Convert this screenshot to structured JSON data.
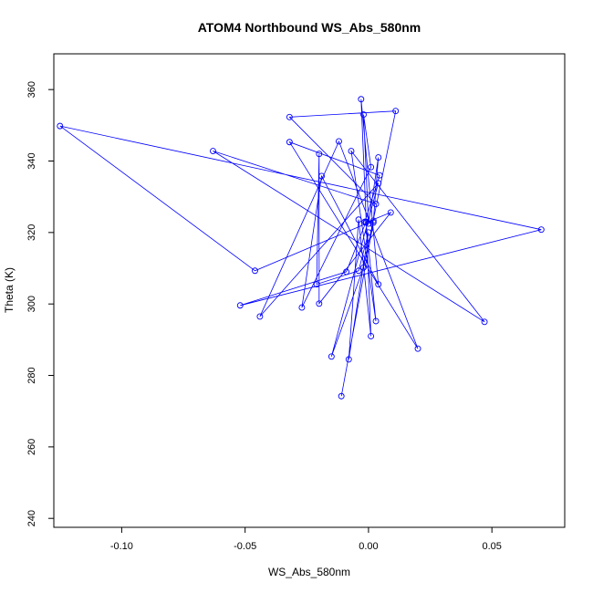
{
  "chart_data": {
    "type": "line",
    "title": "ATOM4 Northbound WS_Abs_580nm",
    "xlabel": "WS_Abs_580nm",
    "ylabel": "Theta (K)",
    "xlim": [
      -0.1275,
      0.0795
    ],
    "ylim": [
      237.5,
      370
    ],
    "xticks": [
      -0.1,
      -0.05,
      0.0,
      0.05
    ],
    "xtick_labels": [
      "-0.10",
      "-0.05",
      "0.00",
      "0.05"
    ],
    "yticks": [
      240,
      260,
      280,
      300,
      320,
      340,
      360
    ],
    "ytick_labels": [
      "240",
      "260",
      "280",
      "300",
      "320",
      "340",
      "360"
    ],
    "grid": false,
    "series": [
      {
        "color": "#0000ff",
        "marker": "open-circle",
        "points": [
          {
            "x": -0.011,
            "y": 274.2
          },
          {
            "x": 0.002,
            "y": 322.8
          },
          {
            "x": -0.0015,
            "y": 323.0
          },
          {
            "x": 0.0045,
            "y": 336.0
          },
          {
            "x": -0.032,
            "y": 345.3
          },
          {
            "x": 0.02,
            "y": 287.5
          },
          {
            "x": -0.012,
            "y": 345.5
          },
          {
            "x": -0.044,
            "y": 296.5
          },
          {
            "x": 0.004,
            "y": 333.8
          },
          {
            "x": -0.015,
            "y": 285.3
          },
          {
            "x": -0.002,
            "y": 310.2
          },
          {
            "x": 0.011,
            "y": 354.0
          },
          {
            "x": -0.032,
            "y": 352.3
          },
          {
            "x": 0.003,
            "y": 328.0
          },
          {
            "x": -0.063,
            "y": 342.8
          },
          {
            "x": 0.047,
            "y": 295.0
          },
          {
            "x": -0.007,
            "y": 342.8
          },
          {
            "x": 0.003,
            "y": 295.2
          },
          {
            "x": -0.001,
            "y": 323.0
          },
          {
            "x": -0.009,
            "y": 309.0
          },
          {
            "x": -0.052,
            "y": 299.6
          },
          {
            "x": 0.07,
            "y": 320.8
          },
          {
            "x": -0.125,
            "y": 349.8
          },
          {
            "x": -0.046,
            "y": 309.3
          },
          {
            "x": 0.002,
            "y": 323.3
          },
          {
            "x": 0.004,
            "y": 341.0
          },
          {
            "x": 0.0,
            "y": 322.5
          },
          {
            "x": -0.002,
            "y": 353.0
          },
          {
            "x": 0.001,
            "y": 338.3
          },
          {
            "x": -0.027,
            "y": 299.0
          },
          {
            "x": -0.019,
            "y": 335.8
          },
          {
            "x": 0.004,
            "y": 305.5
          },
          {
            "x": -0.003,
            "y": 357.3
          },
          {
            "x": 0.001,
            "y": 291.0
          },
          {
            "x": -0.004,
            "y": 323.6
          },
          {
            "x": -0.008,
            "y": 284.5
          },
          {
            "x": 0.0,
            "y": 320.0
          },
          {
            "x": -0.004,
            "y": 309.3
          },
          {
            "x": -0.021,
            "y": 305.5
          },
          {
            "x": -0.02,
            "y": 342.0
          },
          {
            "x": -0.02,
            "y": 300.1
          },
          {
            "x": 0.009,
            "y": 325.6
          },
          {
            "x": -0.001,
            "y": 322.8
          }
        ]
      }
    ]
  }
}
